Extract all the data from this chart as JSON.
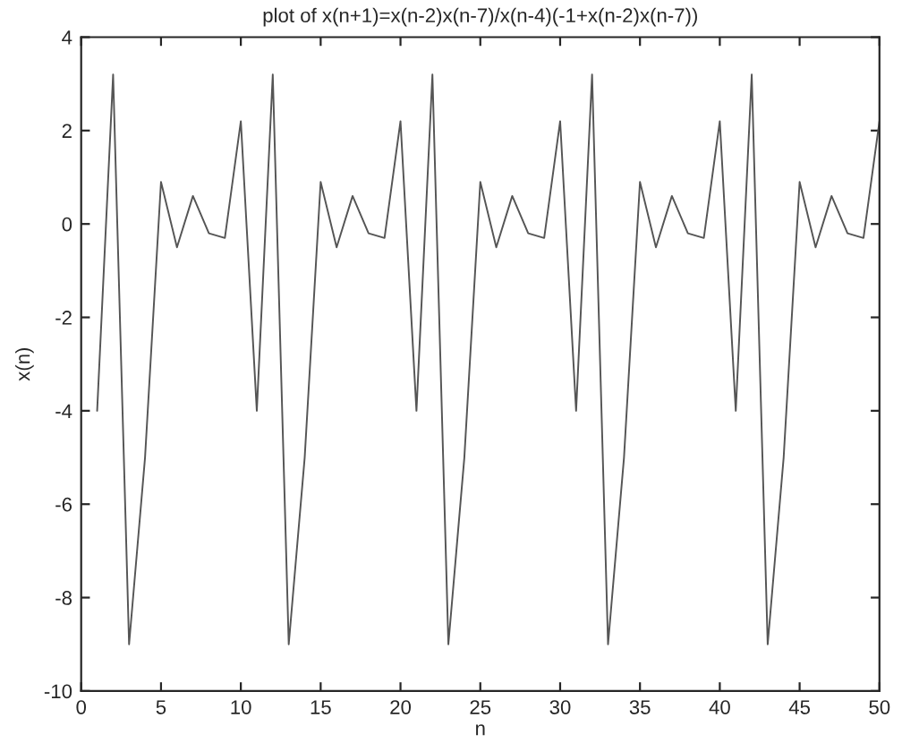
{
  "chart_data": {
    "type": "line",
    "title": "plot of x(n+1)=x(n-2)x(n-7)/x(n-4)(-1+x(n-2)x(n-7))",
    "xlabel": "n",
    "ylabel": "x(n)",
    "x": [
      1,
      2,
      3,
      4,
      5,
      6,
      7,
      8,
      9,
      10,
      11,
      12,
      13,
      14,
      15,
      16,
      17,
      18,
      19,
      20,
      21,
      22,
      23,
      24,
      25,
      26,
      27,
      28,
      29,
      30,
      31,
      32,
      33,
      34,
      35,
      36,
      37,
      38,
      39,
      40,
      41,
      42,
      43,
      44,
      45,
      46,
      47,
      48,
      49,
      50
    ],
    "series": [
      {
        "color": "#555555",
        "values": [
          -4,
          3.2,
          -9,
          -5,
          0.9,
          -0.5,
          0.6,
          -0.2,
          -0.3,
          2.2,
          -4,
          3.2,
          -9,
          -5,
          0.9,
          -0.5,
          0.6,
          -0.2,
          -0.3,
          2.2,
          -4,
          3.2,
          -9,
          -5,
          0.9,
          -0.5,
          0.6,
          -0.2,
          -0.3,
          2.2,
          -4,
          3.2,
          -9,
          -5,
          0.9,
          -0.5,
          0.6,
          -0.2,
          -0.3,
          2.2,
          -4,
          3.2,
          -9,
          -5,
          0.9,
          -0.5,
          0.6,
          -0.2,
          -0.3,
          2.2
        ]
      }
    ],
    "xlim": [
      0,
      50
    ],
    "ylim": [
      -10,
      4
    ],
    "xticks": [
      0,
      5,
      10,
      15,
      20,
      25,
      30,
      35,
      40,
      45,
      50
    ],
    "yticks": [
      -10,
      -8,
      -6,
      -4,
      -2,
      0,
      2,
      4
    ],
    "grid": false,
    "legend": false,
    "marker": "none",
    "line_style": "solid"
  }
}
